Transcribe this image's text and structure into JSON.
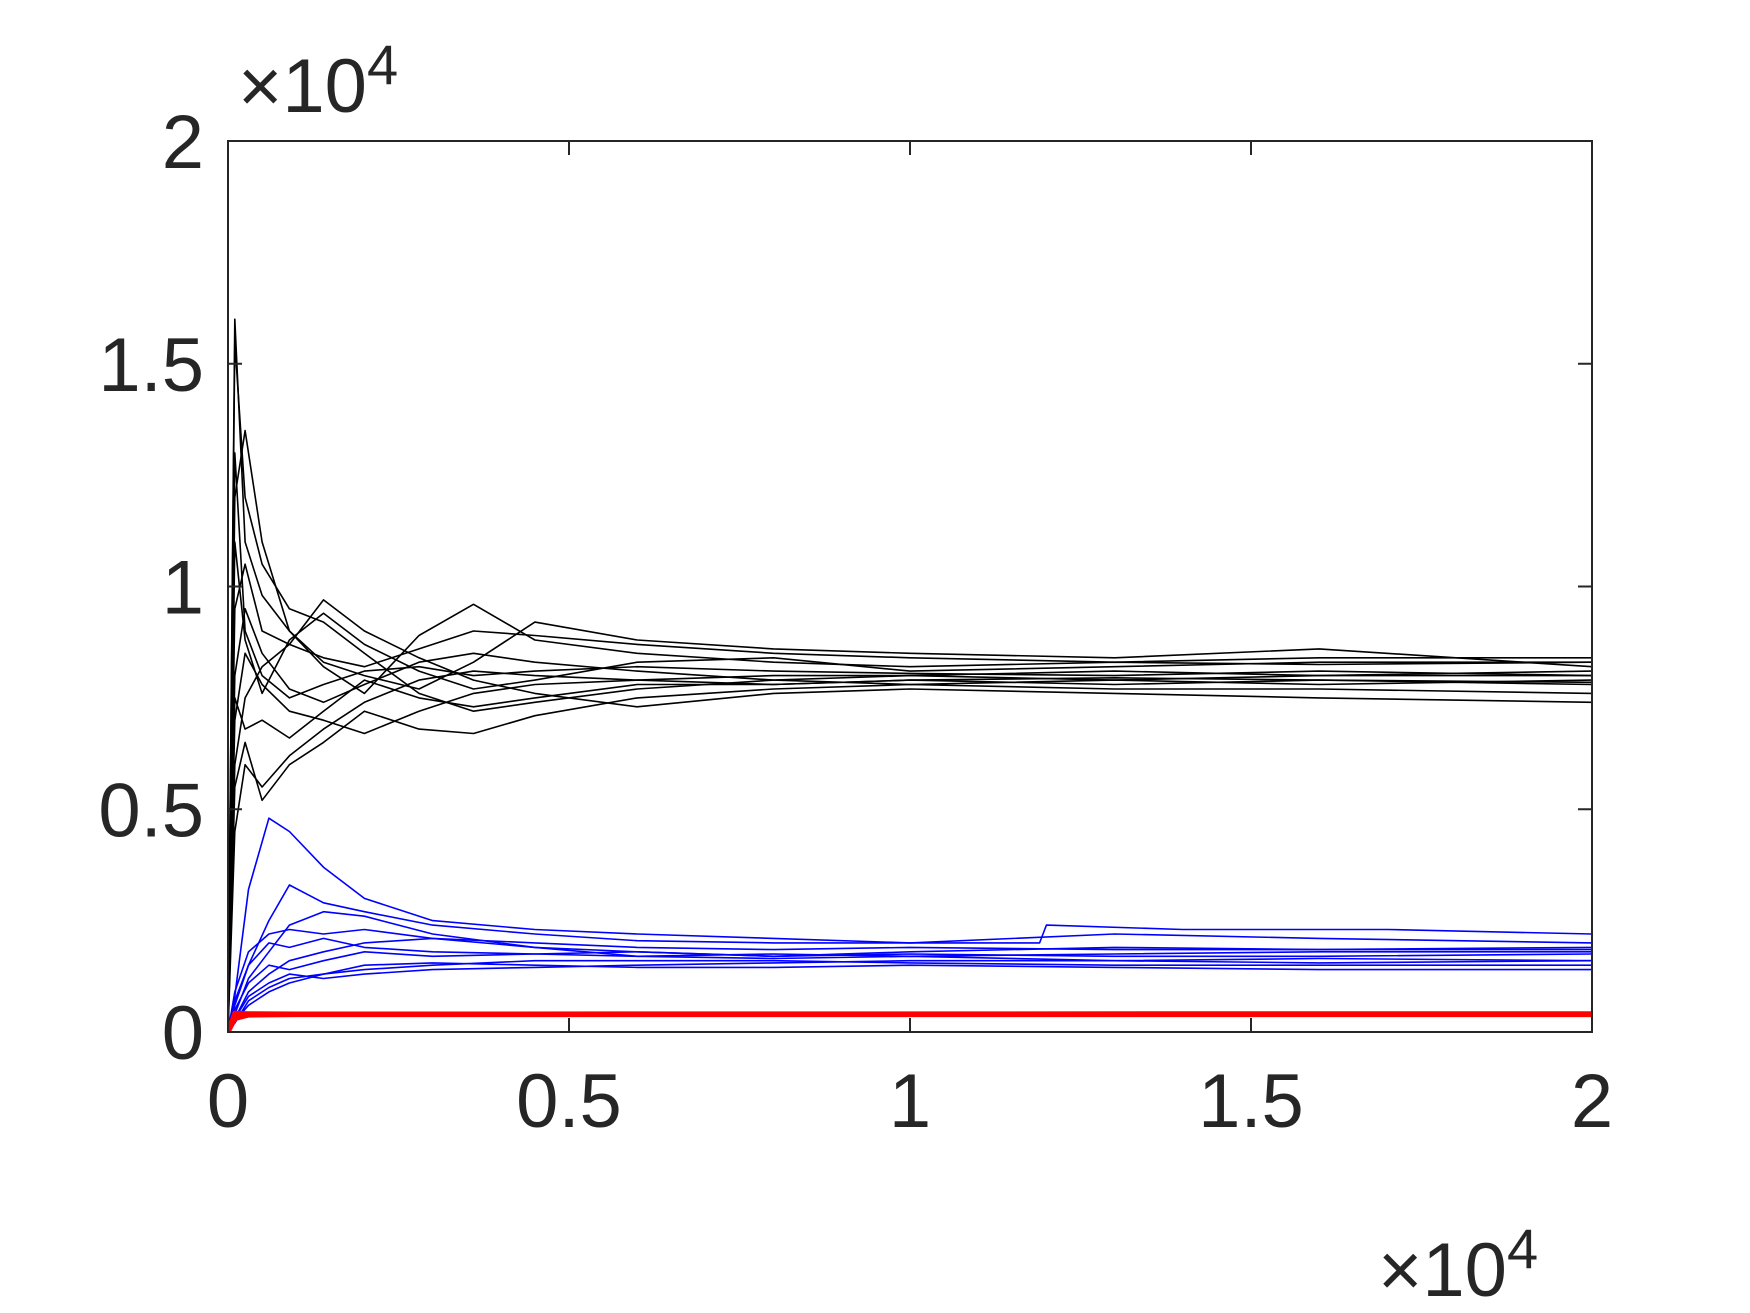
{
  "chart_data": {
    "type": "line",
    "title": "",
    "xlabel": "",
    "ylabel": "",
    "xlim": [
      0,
      20000
    ],
    "ylim": [
      0,
      20000
    ],
    "x_ticks": [
      {
        "value": 0,
        "label": "0"
      },
      {
        "value": 5000,
        "label": "0.5"
      },
      {
        "value": 10000,
        "label": "1"
      },
      {
        "value": 15000,
        "label": "1.5"
      },
      {
        "value": 20000,
        "label": "2"
      }
    ],
    "y_ticks": [
      {
        "value": 0,
        "label": "0"
      },
      {
        "value": 5000,
        "label": "0.5"
      },
      {
        "value": 10000,
        "label": "1"
      },
      {
        "value": 15000,
        "label": "1.5"
      },
      {
        "value": 20000,
        "label": "2"
      }
    ],
    "x_exponent": {
      "times": "×",
      "base": "10",
      "power": "4"
    },
    "y_exponent": {
      "times": "×",
      "base": "10",
      "power": "4"
    },
    "grid": false,
    "legend": "none",
    "groups": [
      {
        "color": "#000000",
        "converged_value": 7900,
        "description_level": "upper",
        "series": [
          {
            "x": [
              0,
              100,
              250,
              500,
              900,
              1400,
              2000,
              2800,
              3600,
              4500,
              6000,
              8000,
              10000,
              13000,
              16000,
              20000
            ],
            "y": [
              0,
              16000,
              11000,
              9800,
              9000,
              8200,
              7600,
              8900,
              9600,
              8800,
              8500,
              8300,
              8200,
              8300,
              8250,
              8300
            ]
          },
          {
            "x": [
              0,
              100,
              250,
              500,
              900,
              1400,
              2000,
              2800,
              3600,
              4500,
              6000,
              8000,
              10000,
              13000,
              16000,
              20000
            ],
            "y": [
              0,
              15500,
              12000,
              10500,
              9500,
              9200,
              8500,
              7600,
              7200,
              7400,
              7700,
              7900,
              8000,
              7900,
              8000,
              8100
            ]
          },
          {
            "x": [
              0,
              100,
              250,
              500,
              900,
              1400,
              2000,
              2800,
              3600,
              4500,
              6000,
              8000,
              10000,
              13000,
              16000,
              20000
            ],
            "y": [
              0,
              12000,
              13500,
              11000,
              9000,
              8300,
              8000,
              7700,
              8300,
              9200,
              8800,
              8600,
              8500,
              8400,
              8600,
              8200
            ]
          },
          {
            "x": [
              0,
              100,
              250,
              500,
              900,
              1400,
              2000,
              2800,
              3600,
              4500,
              6000,
              8000,
              10000,
              13000,
              16000,
              20000
            ],
            "y": [
              0,
              9500,
              10500,
              9000,
              8700,
              9700,
              9000,
              8400,
              7900,
              7600,
              7300,
              7600,
              7700,
              7600,
              7500,
              7400
            ]
          },
          {
            "x": [
              0,
              100,
              250,
              500,
              900,
              1400,
              2000,
              2800,
              3600,
              4500,
              6000,
              8000,
              10000,
              13000,
              16000,
              20000
            ],
            "y": [
              0,
              7000,
              8500,
              7800,
              7200,
              7000,
              6700,
              7200,
              7600,
              7800,
              7900,
              7800,
              7900,
              7800,
              7900,
              7800
            ]
          },
          {
            "x": [
              0,
              100,
              250,
              500,
              900,
              1400,
              2000,
              2800,
              3600,
              4500,
              6000,
              8000,
              10000,
              13000,
              16000,
              20000
            ],
            "y": [
              0,
              6000,
              7500,
              8200,
              8700,
              8400,
              8200,
              8600,
              9000,
              8900,
              8700,
              8500,
              8400,
              8300,
              8400,
              8400
            ]
          },
          {
            "x": [
              0,
              100,
              250,
              500,
              900,
              1400,
              2000,
              2800,
              3600,
              4500,
              6000,
              8000,
              10000,
              13000,
              16000,
              20000
            ],
            "y": [
              0,
              5500,
              6500,
              5200,
              6000,
              6500,
              7200,
              6800,
              6700,
              7100,
              7500,
              7700,
              7800,
              7700,
              7700,
              7600
            ]
          },
          {
            "x": [
              0,
              100,
              250,
              500,
              900,
              1400,
              2000,
              2800,
              3600,
              4500,
              6000,
              8000,
              10000,
              13000,
              16000,
              20000
            ],
            "y": [
              0,
              4500,
              6000,
              5500,
              6200,
              6800,
              7400,
              7900,
              8100,
              8000,
              7900,
              8000,
              8000,
              8100,
              8000,
              8000
            ]
          },
          {
            "x": [
              0,
              100,
              250,
              500,
              900,
              1400,
              2000,
              2800,
              3600,
              4500,
              6000,
              8000,
              10000,
              13000,
              16000,
              20000
            ],
            "y": [
              0,
              13000,
              9000,
              8000,
              7500,
              7800,
              8100,
              8200,
              8000,
              8100,
              8200,
              8100,
              8050,
              8000,
              8100,
              8000
            ]
          },
          {
            "x": [
              0,
              100,
              250,
              500,
              900,
              1400,
              2000,
              2800,
              3600,
              4500,
              6000,
              8000,
              10000,
              13000,
              16000,
              20000
            ],
            "y": [
              0,
              8000,
              9500,
              8500,
              7700,
              7400,
              7800,
              8300,
              8500,
              8300,
              8100,
              7900,
              7800,
              7900,
              7800,
              7900
            ]
          },
          {
            "x": [
              0,
              100,
              250,
              500,
              900,
              1400,
              2000,
              2800,
              3600,
              4500,
              6000,
              8000,
              10000,
              13000,
              16000,
              20000
            ],
            "y": [
              0,
              11000,
              8800,
              7600,
              8800,
              9400,
              8700,
              8100,
              7700,
              7900,
              8300,
              8400,
              8100,
              8200,
              8300,
              8300
            ]
          },
          {
            "x": [
              0,
              100,
              250,
              500,
              900,
              1400,
              2000,
              2800,
              3600,
              4500,
              6000,
              8000,
              10000,
              13000,
              16000,
              20000
            ],
            "y": [
              0,
              7500,
              6800,
              7000,
              6600,
              7200,
              7900,
              7500,
              7300,
              7500,
              7800,
              7800,
              7900,
              7950,
              7900,
              7850
            ]
          }
        ]
      },
      {
        "color": "#0000ff",
        "converged_value": 1700,
        "description_level": "middle",
        "series": [
          {
            "x": [
              0,
              100,
              300,
              600,
              900,
              1400,
              2000,
              3000,
              4500,
              6000,
              8000,
              10000,
              11900,
              12000,
              14000,
              17000,
              20000
            ],
            "y": [
              0,
              800,
              3200,
              4800,
              4500,
              3700,
              3000,
              2500,
              2300,
              2200,
              2100,
              2000,
              2000,
              2400,
              2300,
              2300,
              2200
            ]
          },
          {
            "x": [
              0,
              100,
              300,
              600,
              900,
              1400,
              2000,
              3000,
              4500,
              6000,
              8000,
              10000,
              13000,
              16000,
              20000
            ],
            "y": [
              0,
              600,
              1500,
              2500,
              3300,
              2900,
              2700,
              2400,
              2200,
              2050,
              2000,
              2000,
              2200,
              2100,
              2000
            ]
          },
          {
            "x": [
              0,
              100,
              300,
              600,
              900,
              1400,
              2000,
              3000,
              4500,
              6000,
              8000,
              10000,
              13000,
              16000,
              20000
            ],
            "y": [
              0,
              400,
              1200,
              1800,
              2400,
              2700,
              2600,
              2200,
              1900,
              1800,
              1700,
              1800,
              1900,
              1850,
              1900
            ]
          },
          {
            "x": [
              0,
              100,
              300,
              600,
              900,
              1400,
              2000,
              3000,
              4500,
              6000,
              8000,
              10000,
              13000,
              16000,
              20000
            ],
            "y": [
              0,
              300,
              900,
              1300,
              1600,
              1800,
              2000,
              2100,
              1900,
              1700,
              1650,
              1700,
              1600,
              1650,
              1600
            ]
          },
          {
            "x": [
              0,
              100,
              300,
              600,
              900,
              1400,
              2000,
              3000,
              4500,
              6000,
              8000,
              10000,
              13000,
              16000,
              20000
            ],
            "y": [
              0,
              200,
              700,
              1000,
              1200,
              1300,
              1400,
              1500,
              1600,
              1600,
              1600,
              1550,
              1500,
              1500,
              1500
            ]
          },
          {
            "x": [
              0,
              100,
              300,
              600,
              900,
              1400,
              2000,
              3000,
              4500,
              6000,
              8000,
              10000,
              13000,
              16000,
              20000
            ],
            "y": [
              0,
              500,
              1100,
              1500,
              1400,
              1600,
              1800,
              1700,
              1750,
              1800,
              1700,
              1750,
              1700,
              1700,
              1750
            ]
          },
          {
            "x": [
              0,
              100,
              300,
              600,
              900,
              1400,
              2000,
              3000,
              4500,
              6000,
              8000,
              10000,
              13000,
              16000,
              20000
            ],
            "y": [
              0,
              300,
              800,
              1100,
              1300,
              1200,
              1300,
              1400,
              1450,
              1500,
              1550,
              1600,
              1600,
              1550,
              1600
            ]
          },
          {
            "x": [
              0,
              100,
              300,
              600,
              900,
              1400,
              2000,
              3000,
              4500,
              6000,
              8000,
              10000,
              13000,
              16000,
              20000
            ],
            "y": [
              0,
              700,
              1500,
              2000,
              1900,
              2100,
              1900,
              1800,
              1750,
              1700,
              1750,
              1700,
              1750,
              1800,
              1800
            ]
          },
          {
            "x": [
              0,
              100,
              300,
              600,
              900,
              1400,
              2000,
              3000,
              4500,
              6000,
              8000,
              10000,
              13000,
              16000,
              20000
            ],
            "y": [
              0,
              250,
              600,
              900,
              1100,
              1300,
              1500,
              1550,
              1500,
              1450,
              1450,
              1500,
              1450,
              1400,
              1400
            ]
          },
          {
            "x": [
              0,
              100,
              300,
              600,
              900,
              1400,
              2000,
              3000,
              4500,
              6000,
              8000,
              10000,
              13000,
              16000,
              20000
            ],
            "y": [
              0,
              900,
              1800,
              2200,
              2300,
              2200,
              2300,
              2100,
              2000,
              1900,
              1850,
              1900,
              1850,
              1850,
              1850
            ]
          }
        ]
      },
      {
        "color": "#ff0000",
        "converged_value": 400,
        "description_level": "lower",
        "series": [
          {
            "x": [
              0,
              100,
              300,
              1000,
              20000
            ],
            "y": [
              0,
              350,
              400,
              400,
              400
            ]
          },
          {
            "x": [
              0,
              100,
              300,
              1000,
              20000
            ],
            "y": [
              0,
              300,
              380,
              390,
              390
            ]
          },
          {
            "x": [
              0,
              100,
              300,
              1000,
              20000
            ],
            "y": [
              0,
              420,
              410,
              405,
              410
            ]
          }
        ]
      }
    ]
  }
}
